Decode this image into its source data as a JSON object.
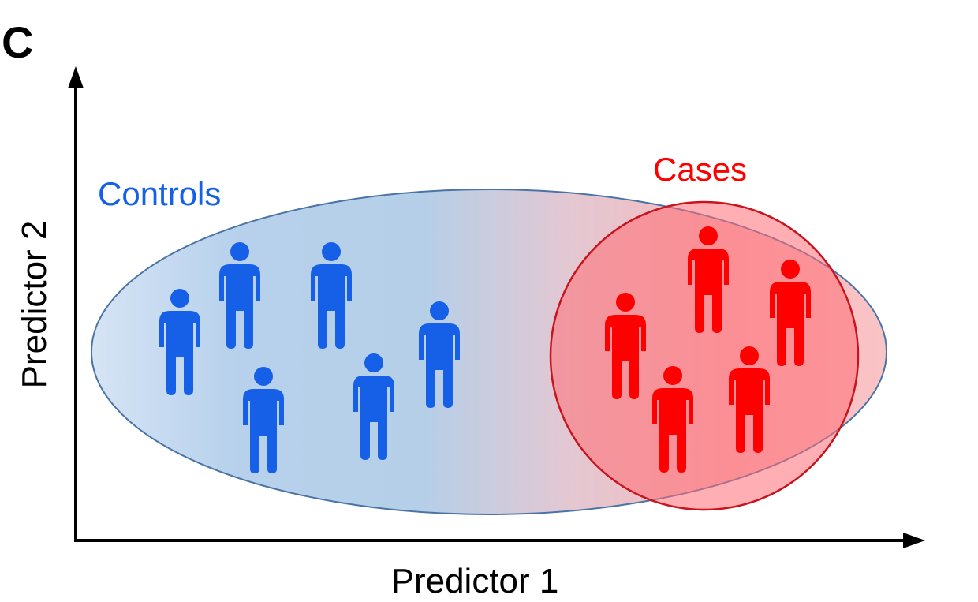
{
  "panel_label": "C",
  "axes": {
    "x_label": "Predictor 1",
    "y_label": "Predictor 2"
  },
  "groups": {
    "controls": {
      "label": "Controls",
      "color": "#1560e6",
      "count": 6
    },
    "cases": {
      "label": "Cases",
      "color": "#ff0000",
      "count": 5
    }
  },
  "colors": {
    "ellipse_left": "#b4cfec",
    "ellipse_right": "#f8b4b8",
    "ellipse_stroke": "#4a74a6",
    "circle_fill": "#ff7a7e",
    "circle_stroke": "#c8141e",
    "axis": "#000000"
  }
}
